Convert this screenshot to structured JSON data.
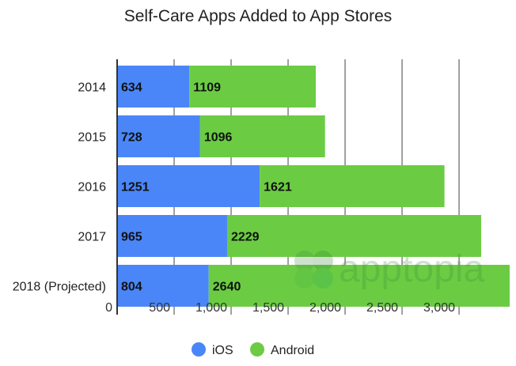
{
  "chart_data": {
    "type": "bar",
    "orientation": "horizontal",
    "stacked": true,
    "title": "Self-Care Apps Added to App Stores",
    "xlabel": "",
    "ylabel": "",
    "categories": [
      "2014",
      "2015",
      "2016",
      "2017",
      "2018 (Projected)"
    ],
    "series": [
      {
        "name": "iOS",
        "color": "#4a86f7",
        "values": [
          634,
          728,
          1251,
          965,
          804
        ],
        "labels": [
          "634",
          "728",
          "1251",
          "965",
          "804"
        ]
      },
      {
        "name": "Android",
        "color": "#6bcc43",
        "values": [
          1109,
          1096,
          1621,
          2229,
          2640
        ],
        "labels": [
          "1109",
          "1096",
          "1621",
          "2229",
          "2640"
        ]
      }
    ],
    "xlim": [
      0,
      3458
    ],
    "xticks": [
      0,
      500,
      1000,
      1500,
      2000,
      2500,
      3000
    ],
    "xtick_labels": [
      "0",
      "500",
      "1,000",
      "1,500",
      "2,000",
      "2,500",
      "3,000"
    ],
    "grid": true,
    "legend": "bottom",
    "watermark": "apptopia"
  }
}
